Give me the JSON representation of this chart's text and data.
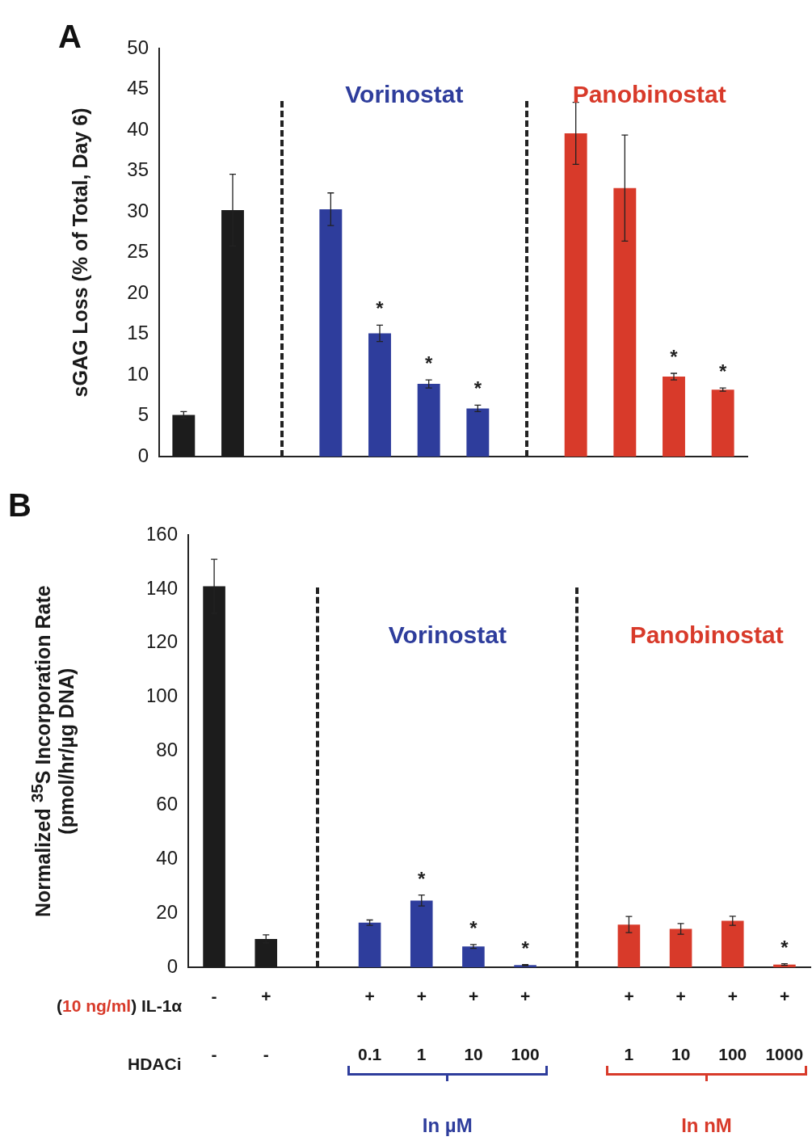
{
  "chart_data": [
    {
      "type": "bar",
      "title": "A",
      "ylabel": "sGAG Loss  (% of Total, Day 6)",
      "categories": [
        null,
        null,
        null,
        null,
        null,
        null,
        null,
        null,
        null,
        null,
        null,
        null
      ],
      "values": [
        5.1,
        30.2,
        null,
        30.3,
        15.1,
        8.9,
        5.9,
        null,
        39.6,
        32.9,
        9.8,
        8.2
      ],
      "errors": [
        0.4,
        4.4,
        null,
        2.0,
        1.0,
        0.5,
        0.4,
        null,
        3.8,
        6.5,
        0.4,
        0.2
      ],
      "value_labels": [
        null,
        null,
        null,
        null,
        "*",
        "*",
        "*",
        null,
        null,
        null,
        "*",
        "*"
      ],
      "colors": [
        "#1c1c1c",
        "#1c1c1c",
        null,
        "#2e3d9c",
        "#2e3d9c",
        "#2e3d9c",
        "#2e3d9c",
        null,
        "#d83a2a",
        "#d83a2a",
        "#d83a2a",
        "#d83a2a"
      ],
      "ylim": [
        0,
        50
      ],
      "yticks": [
        0,
        5,
        10,
        15,
        20,
        25,
        30,
        35,
        40,
        45,
        50
      ],
      "tick_labels": "y",
      "annotations": [
        "Vorinostat",
        "Panobinostat"
      ]
    },
    {
      "type": "bar",
      "title": "B",
      "ylabel": "Normalized $^{35}$S Incorporation Rate\n(pmol/hr/µg DNA)",
      "categories": [
        "-\n-",
        "+\n-",
        null,
        "+\n0.1",
        "+\n1",
        "+\n10",
        "+\n100",
        null,
        "+\n1",
        "+\n10",
        "+\n100",
        "+\n1000"
      ],
      "values": [
        141,
        10.5,
        null,
        16.5,
        24.7,
        7.7,
        0.8,
        null,
        15.8,
        14.2,
        17.2,
        1.0
      ],
      "errors": [
        10,
        1.5,
        null,
        1.0,
        2.0,
        0.7,
        0.2,
        null,
        3.0,
        2.0,
        1.7,
        0.3
      ],
      "value_labels": [
        null,
        null,
        null,
        null,
        "*",
        "*",
        "*",
        null,
        null,
        null,
        null,
        "*"
      ],
      "colors": [
        "#1c1c1c",
        "#1c1c1c",
        null,
        "#2e3d9c",
        "#2e3d9c",
        "#2e3d9c",
        "#2e3d9c",
        null,
        "#d83a2a",
        "#d83a2a",
        "#d83a2a",
        "#d83a2a"
      ],
      "ylim": [
        0,
        160
      ],
      "yticks": [
        0,
        20,
        40,
        60,
        80,
        100,
        120,
        140,
        160
      ],
      "annotations": [
        "Vorinostat",
        "Panobinostat",
        "(10 ng/ml) IL-1α",
        "HDACi",
        "In µM",
        "In nM"
      ]
    }
  ]
}
